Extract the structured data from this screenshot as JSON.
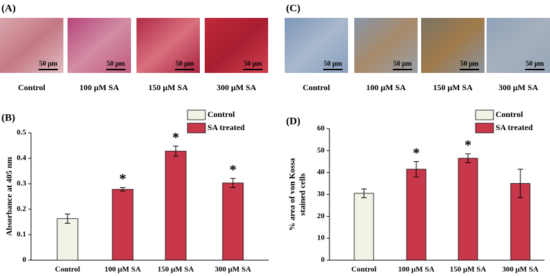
{
  "image_panels": [
    {
      "label": "(A)",
      "images": [
        {
          "caption": "Control",
          "scale_bar": "50 μm"
        },
        {
          "caption": "100 μM SA",
          "scale_bar": "50 μm"
        },
        {
          "caption": "150 μM SA",
          "scale_bar": "50 μm"
        },
        {
          "caption": "300 μM SA",
          "scale_bar": "50 μm"
        }
      ]
    },
    {
      "label": "(C)",
      "images": [
        {
          "caption": "Control",
          "scale_bar": "50 μm"
        },
        {
          "caption": "100 μM SA",
          "scale_bar": "50 μm"
        },
        {
          "caption": "150 μM SA",
          "scale_bar": "50 μm"
        },
        {
          "caption": "300 μM SA",
          "scale_bar": "50 μm"
        }
      ]
    }
  ],
  "chart_data": [
    {
      "type": "bar",
      "panel_label": "(B)",
      "y_label": [
        "Absorbance at 405 nm"
      ],
      "categories": [
        "Control",
        "100 μM SA",
        "150 μM SA",
        "300 μM SA"
      ],
      "series": [
        {
          "name": "Control",
          "color": "#f2f2e6",
          "values": [
            0.163,
            null,
            null,
            null
          ],
          "errors": [
            0.018,
            null,
            null,
            null
          ],
          "significance": [
            null,
            null,
            null,
            null
          ]
        },
        {
          "name": "SA treated",
          "color": "#c8384a",
          "values": [
            null,
            0.278,
            0.428,
            0.303
          ],
          "errors": [
            null,
            0.007,
            0.02,
            0.018
          ],
          "significance": [
            null,
            "*",
            "*",
            "*"
          ]
        }
      ],
      "ylim": [
        0,
        0.5
      ],
      "yticks": [
        0,
        0.1,
        0.2,
        0.3,
        0.4,
        0.5
      ]
    },
    {
      "type": "bar",
      "panel_label": "(D)",
      "y_label": [
        "% area of von Kossa",
        "stained cells"
      ],
      "categories": [
        "Control",
        "100 μM SA",
        "150 μM SA",
        "300 μM SA"
      ],
      "series": [
        {
          "name": "Control",
          "color": "#f2f2e6",
          "values": [
            30.5,
            null,
            null,
            null
          ],
          "errors": [
            2,
            null,
            null,
            null
          ],
          "significance": [
            null,
            null,
            null,
            null
          ]
        },
        {
          "name": "SA treated",
          "color": "#c8384a",
          "values": [
            null,
            41.5,
            46.5,
            35
          ],
          "errors": [
            null,
            3.5,
            2,
            6.5
          ],
          "significance": [
            null,
            "*",
            "*",
            null
          ]
        }
      ],
      "ylim": [
        0,
        60
      ],
      "yticks": [
        0,
        10,
        20,
        30,
        40,
        50,
        60
      ]
    }
  ]
}
